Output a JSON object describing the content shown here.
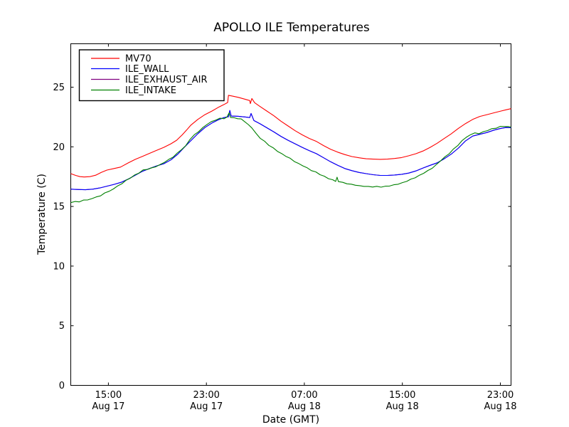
{
  "chart_data": {
    "type": "line",
    "title": "APOLLO ILE Temperatures",
    "xlabel": "Date (GMT)",
    "ylabel": "Temperature (C)",
    "x_unit": "hours since Aug 17 00:00 GMT",
    "xlim": [
      11.93,
      47.87
    ],
    "ylim": [
      0,
      28.64
    ],
    "grid": false,
    "legend_position": "upper left",
    "xticks": [
      {
        "hours": 15,
        "time": "15:00",
        "date": "Aug 17"
      },
      {
        "hours": 23,
        "time": "23:00",
        "date": "Aug 17"
      },
      {
        "hours": 31,
        "time": "07:00",
        "date": "Aug 18"
      },
      {
        "hours": 39,
        "time": "15:00",
        "date": "Aug 18"
      },
      {
        "hours": 47,
        "time": "23:00",
        "date": "Aug 18"
      }
    ],
    "yticks": [
      0,
      5,
      10,
      15,
      20,
      25
    ],
    "series": [
      {
        "name": "MV70",
        "color": "#ff0000",
        "draw_order": 2,
        "points": [
          [
            11.93,
            17.75
          ],
          [
            12.33,
            17.6
          ],
          [
            12.68,
            17.5
          ],
          [
            13.03,
            17.47
          ],
          [
            13.49,
            17.5
          ],
          [
            13.96,
            17.62
          ],
          [
            14.42,
            17.85
          ],
          [
            14.88,
            18.05
          ],
          [
            15.46,
            18.18
          ],
          [
            15.99,
            18.3
          ],
          [
            16.62,
            18.65
          ],
          [
            17.2,
            18.95
          ],
          [
            17.78,
            19.2
          ],
          [
            18.36,
            19.45
          ],
          [
            18.94,
            19.7
          ],
          [
            19.52,
            19.95
          ],
          [
            20.1,
            20.25
          ],
          [
            20.57,
            20.55
          ],
          [
            21.03,
            21.0
          ],
          [
            21.38,
            21.4
          ],
          [
            21.72,
            21.8
          ],
          [
            22.3,
            22.3
          ],
          [
            22.88,
            22.7
          ],
          [
            23.46,
            23.0
          ],
          [
            24.04,
            23.35
          ],
          [
            24.45,
            23.55
          ],
          [
            24.74,
            23.72
          ],
          [
            24.8,
            24.32
          ],
          [
            25.14,
            24.25
          ],
          [
            25.61,
            24.15
          ],
          [
            26.13,
            24.0
          ],
          [
            26.54,
            23.88
          ],
          [
            26.59,
            23.62
          ],
          [
            26.71,
            24.05
          ],
          [
            26.94,
            23.7
          ],
          [
            27.35,
            23.4
          ],
          [
            27.93,
            23.0
          ],
          [
            28.51,
            22.6
          ],
          [
            29.09,
            22.15
          ],
          [
            29.67,
            21.75
          ],
          [
            30.25,
            21.35
          ],
          [
            30.83,
            21.0
          ],
          [
            31.41,
            20.7
          ],
          [
            31.99,
            20.45
          ],
          [
            32.57,
            20.1
          ],
          [
            33.14,
            19.8
          ],
          [
            33.72,
            19.55
          ],
          [
            34.3,
            19.35
          ],
          [
            34.88,
            19.18
          ],
          [
            35.46,
            19.08
          ],
          [
            36.04,
            19.0
          ],
          [
            36.62,
            18.97
          ],
          [
            37.2,
            18.95
          ],
          [
            37.78,
            18.97
          ],
          [
            38.36,
            19.02
          ],
          [
            38.94,
            19.1
          ],
          [
            39.52,
            19.25
          ],
          [
            40.1,
            19.42
          ],
          [
            40.68,
            19.65
          ],
          [
            41.26,
            19.95
          ],
          [
            41.84,
            20.3
          ],
          [
            42.42,
            20.7
          ],
          [
            43.0,
            21.1
          ],
          [
            43.58,
            21.55
          ],
          [
            44.16,
            21.95
          ],
          [
            44.74,
            22.3
          ],
          [
            45.32,
            22.55
          ],
          [
            45.9,
            22.7
          ],
          [
            46.48,
            22.85
          ],
          [
            47.06,
            23.0
          ],
          [
            47.46,
            23.1
          ],
          [
            47.87,
            23.2
          ]
        ]
      },
      {
        "name": "ILE_WALL",
        "color": "#0000ff",
        "draw_order": 3,
        "points": [
          [
            11.93,
            16.45
          ],
          [
            12.57,
            16.42
          ],
          [
            13.14,
            16.4
          ],
          [
            13.72,
            16.45
          ],
          [
            14.3,
            16.55
          ],
          [
            14.88,
            16.7
          ],
          [
            15.46,
            16.85
          ],
          [
            16.04,
            17.02
          ],
          [
            16.62,
            17.3
          ],
          [
            17.2,
            17.62
          ],
          [
            17.78,
            17.95
          ],
          [
            18.36,
            18.18
          ],
          [
            18.94,
            18.4
          ],
          [
            19.52,
            18.58
          ],
          [
            20.1,
            18.9
          ],
          [
            20.68,
            19.4
          ],
          [
            21.14,
            19.9
          ],
          [
            21.72,
            20.5
          ],
          [
            22.3,
            21.1
          ],
          [
            22.88,
            21.62
          ],
          [
            23.46,
            22.0
          ],
          [
            24.04,
            22.3
          ],
          [
            24.45,
            22.45
          ],
          [
            24.8,
            22.52
          ],
          [
            24.91,
            23.05
          ],
          [
            25.03,
            22.58
          ],
          [
            25.61,
            22.56
          ],
          [
            26.19,
            22.5
          ],
          [
            26.54,
            22.45
          ],
          [
            26.65,
            22.8
          ],
          [
            26.88,
            22.2
          ],
          [
            27.35,
            21.95
          ],
          [
            27.93,
            21.6
          ],
          [
            28.51,
            21.25
          ],
          [
            29.09,
            20.88
          ],
          [
            29.67,
            20.55
          ],
          [
            30.25,
            20.25
          ],
          [
            30.83,
            19.95
          ],
          [
            31.41,
            19.68
          ],
          [
            31.99,
            19.42
          ],
          [
            32.57,
            19.08
          ],
          [
            33.14,
            18.75
          ],
          [
            33.72,
            18.45
          ],
          [
            34.3,
            18.18
          ],
          [
            34.88,
            18.0
          ],
          [
            35.46,
            17.85
          ],
          [
            36.04,
            17.75
          ],
          [
            36.62,
            17.66
          ],
          [
            37.2,
            17.6
          ],
          [
            37.78,
            17.6
          ],
          [
            38.36,
            17.64
          ],
          [
            38.94,
            17.7
          ],
          [
            39.52,
            17.8
          ],
          [
            40.1,
            17.98
          ],
          [
            40.68,
            18.22
          ],
          [
            41.26,
            18.45
          ],
          [
            41.84,
            18.66
          ],
          [
            42.42,
            19.0
          ],
          [
            43.0,
            19.4
          ],
          [
            43.58,
            19.9
          ],
          [
            44.16,
            20.5
          ],
          [
            44.74,
            20.9
          ],
          [
            45.32,
            21.05
          ],
          [
            45.9,
            21.2
          ],
          [
            46.48,
            21.4
          ],
          [
            47.06,
            21.55
          ],
          [
            47.46,
            21.62
          ],
          [
            47.87,
            21.6
          ]
        ]
      },
      {
        "name": "ILE_EXHAUST_AIR",
        "color": "#800080",
        "draw_order": 1,
        "points_same_as": "ILE_WALL",
        "note": "coincides with ILE_WALL in the plot (hidden beneath the blue line)"
      },
      {
        "name": "ILE_INTAKE",
        "color": "#008000",
        "draw_order": 4,
        "points": [
          [
            11.93,
            15.32
          ],
          [
            12.28,
            15.42
          ],
          [
            12.62,
            15.38
          ],
          [
            12.97,
            15.54
          ],
          [
            13.32,
            15.55
          ],
          [
            13.67,
            15.66
          ],
          [
            14.01,
            15.8
          ],
          [
            14.36,
            15.89
          ],
          [
            14.71,
            16.14
          ],
          [
            15.06,
            16.27
          ],
          [
            15.41,
            16.47
          ],
          [
            15.75,
            16.72
          ],
          [
            16.1,
            16.9
          ],
          [
            16.45,
            17.2
          ],
          [
            16.8,
            17.38
          ],
          [
            17.14,
            17.64
          ],
          [
            17.49,
            17.8
          ],
          [
            17.84,
            18.07
          ],
          [
            18.19,
            18.1
          ],
          [
            18.54,
            18.24
          ],
          [
            18.88,
            18.33
          ],
          [
            19.23,
            18.52
          ],
          [
            19.58,
            18.7
          ],
          [
            19.93,
            18.95
          ],
          [
            20.28,
            19.13
          ],
          [
            20.62,
            19.48
          ],
          [
            20.97,
            19.76
          ],
          [
            21.32,
            20.1
          ],
          [
            21.67,
            20.63
          ],
          [
            22.02,
            21.02
          ],
          [
            22.36,
            21.26
          ],
          [
            22.71,
            21.62
          ],
          [
            23.06,
            21.88
          ],
          [
            23.41,
            22.12
          ],
          [
            23.75,
            22.23
          ],
          [
            24.1,
            22.4
          ],
          [
            24.45,
            22.36
          ],
          [
            24.68,
            22.5
          ],
          [
            24.86,
            22.85
          ],
          [
            24.97,
            22.46
          ],
          [
            25.26,
            22.44
          ],
          [
            25.55,
            22.36
          ],
          [
            25.84,
            22.34
          ],
          [
            26.13,
            22.1
          ],
          [
            26.42,
            21.87
          ],
          [
            26.71,
            21.58
          ],
          [
            27.06,
            21.12
          ],
          [
            27.41,
            20.7
          ],
          [
            27.75,
            20.47
          ],
          [
            28.1,
            20.12
          ],
          [
            28.45,
            19.92
          ],
          [
            28.8,
            19.62
          ],
          [
            29.14,
            19.44
          ],
          [
            29.49,
            19.2
          ],
          [
            29.84,
            19.04
          ],
          [
            30.19,
            18.76
          ],
          [
            30.54,
            18.6
          ],
          [
            30.88,
            18.4
          ],
          [
            31.23,
            18.24
          ],
          [
            31.58,
            18.0
          ],
          [
            31.93,
            17.9
          ],
          [
            32.28,
            17.66
          ],
          [
            32.62,
            17.54
          ],
          [
            32.97,
            17.33
          ],
          [
            33.32,
            17.24
          ],
          [
            33.55,
            17.1
          ],
          [
            33.67,
            17.45
          ],
          [
            33.78,
            17.08
          ],
          [
            34.13,
            17.02
          ],
          [
            34.48,
            16.9
          ],
          [
            34.83,
            16.87
          ],
          [
            35.17,
            16.78
          ],
          [
            35.52,
            16.74
          ],
          [
            35.87,
            16.68
          ],
          [
            36.22,
            16.68
          ],
          [
            36.57,
            16.63
          ],
          [
            36.91,
            16.69
          ],
          [
            37.26,
            16.62
          ],
          [
            37.61,
            16.7
          ],
          [
            37.96,
            16.71
          ],
          [
            38.3,
            16.82
          ],
          [
            38.65,
            16.86
          ],
          [
            39.0,
            17.0
          ],
          [
            39.35,
            17.1
          ],
          [
            39.7,
            17.3
          ],
          [
            40.04,
            17.4
          ],
          [
            40.39,
            17.62
          ],
          [
            40.74,
            17.78
          ],
          [
            41.09,
            18.02
          ],
          [
            41.43,
            18.2
          ],
          [
            41.78,
            18.52
          ],
          [
            42.13,
            18.83
          ],
          [
            42.48,
            19.17
          ],
          [
            42.83,
            19.43
          ],
          [
            43.17,
            19.82
          ],
          [
            43.52,
            20.1
          ],
          [
            43.87,
            20.52
          ],
          [
            44.22,
            20.8
          ],
          [
            44.57,
            21.02
          ],
          [
            44.91,
            21.17
          ],
          [
            45.26,
            21.1
          ],
          [
            45.61,
            21.27
          ],
          [
            45.96,
            21.36
          ],
          [
            46.3,
            21.52
          ],
          [
            46.65,
            21.56
          ],
          [
            47.0,
            21.72
          ],
          [
            47.35,
            21.7
          ],
          [
            47.64,
            21.7
          ],
          [
            47.87,
            21.65
          ]
        ]
      }
    ]
  }
}
